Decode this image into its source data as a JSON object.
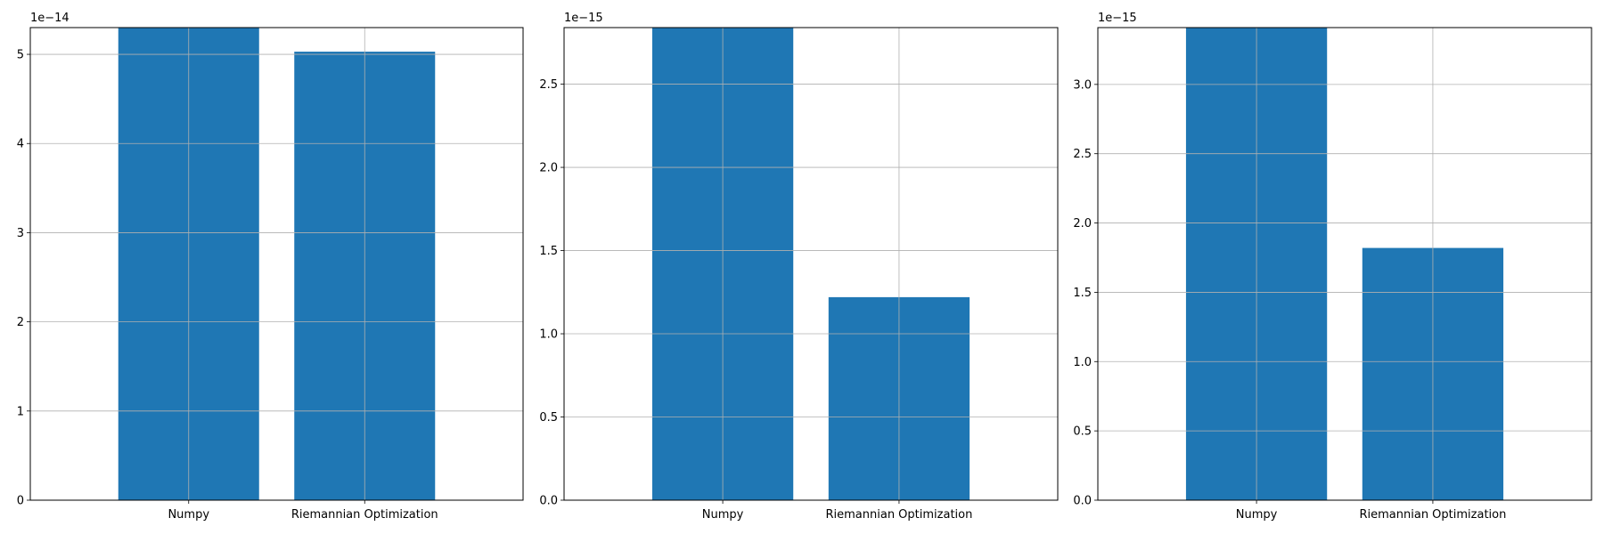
{
  "chart_data": [
    {
      "type": "bar",
      "categories": [
        "Numpy",
        "Riemannian Optimization"
      ],
      "values": [
        5.3e-14,
        5.03e-14
      ],
      "ylim": [
        0,
        5.3e-14
      ],
      "yticks": [
        0,
        1e-14,
        2e-14,
        3e-14,
        4e-14,
        5e-14
      ],
      "ytick_labels": [
        "0",
        "1",
        "2",
        "3",
        "4",
        "5"
      ],
      "offset_label": "1e−14",
      "grid": true,
      "bar_color": "#1f77b4"
    },
    {
      "type": "bar",
      "categories": [
        "Numpy",
        "Riemannian Optimization"
      ],
      "values": [
        2.84e-15,
        1.22e-15
      ],
      "ylim": [
        0,
        2.84e-15
      ],
      "yticks": [
        0,
        5e-16,
        1e-15,
        1.5e-15,
        2e-15,
        2.5e-15
      ],
      "ytick_labels": [
        "0.0",
        "0.5",
        "1.0",
        "1.5",
        "2.0",
        "2.5"
      ],
      "offset_label": "1e−15",
      "grid": true,
      "bar_color": "#1f77b4"
    },
    {
      "type": "bar",
      "categories": [
        "Numpy",
        "Riemannian Optimization"
      ],
      "values": [
        3.41e-15,
        1.82e-15
      ],
      "ylim": [
        0,
        3.41e-15
      ],
      "yticks": [
        0,
        5e-16,
        1e-15,
        1.5e-15,
        2e-15,
        2.5e-15,
        3e-15
      ],
      "ytick_labels": [
        "0.0",
        "0.5",
        "1.0",
        "1.5",
        "2.0",
        "2.5",
        "3.0"
      ],
      "offset_label": "1e−15",
      "grid": true,
      "bar_color": "#1f77b4"
    }
  ]
}
